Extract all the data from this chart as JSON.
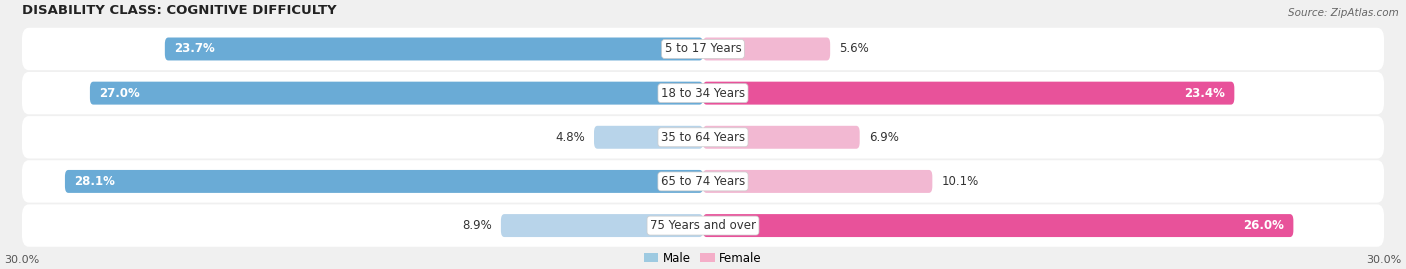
{
  "title": "DISABILITY CLASS: COGNITIVE DIFFICULTY",
  "source": "Source: ZipAtlas.com",
  "categories": [
    "5 to 17 Years",
    "18 to 34 Years",
    "35 to 64 Years",
    "65 to 74 Years",
    "75 Years and over"
  ],
  "male_values": [
    23.7,
    27.0,
    4.8,
    28.1,
    8.9
  ],
  "female_values": [
    5.6,
    23.4,
    6.9,
    10.1,
    26.0
  ],
  "max_value": 30.0,
  "male_color_strong": "#6aabd6",
  "male_color_light": "#b8d4ea",
  "female_color_strong": "#e8529a",
  "female_color_light": "#f2b8d2",
  "male_threshold": 15.0,
  "female_threshold": 15.0,
  "bg_color": "#f0f0f0",
  "row_bg_color": "#e4e4e4",
  "legend_male_color": "#9ecae1",
  "legend_female_color": "#f4aec8"
}
